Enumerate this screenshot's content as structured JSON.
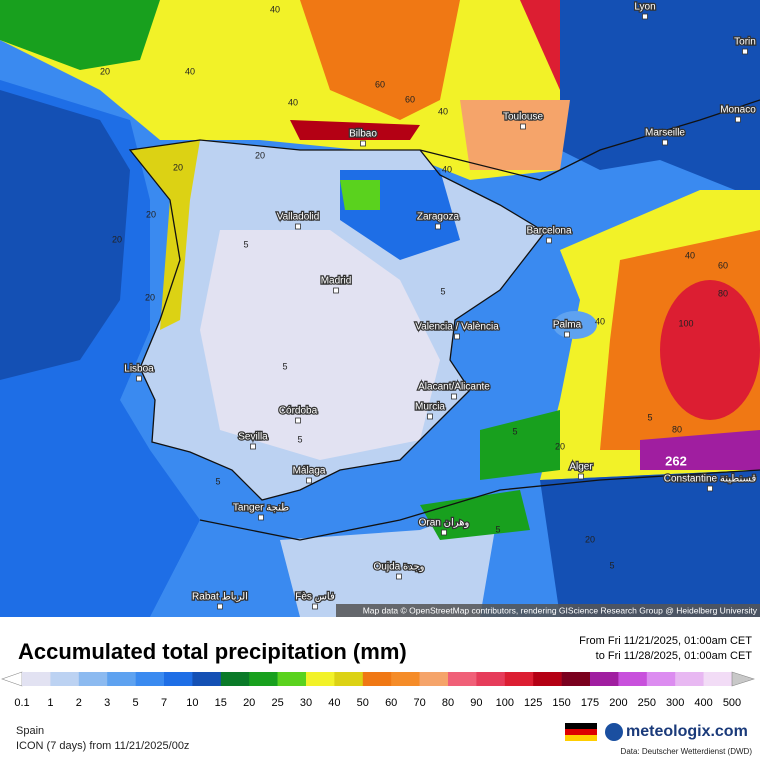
{
  "map": {
    "attribution": "Map data © OpenStreetMap contributors, rendering GIScience Research Group @ Heidelberg University",
    "cities": [
      "Lyon",
      "Torin",
      "Monaco",
      "Marseille",
      "Toulouse",
      "Bilbao",
      "Valladolid",
      "Zaragoza",
      "Barcelona",
      "Madrid",
      "Valencia / València",
      "Palma",
      "Lisboa",
      "Córdoba",
      "Alacant/Alicante",
      "Murcia",
      "Sevilla",
      "Málaga",
      "Alger",
      "Constantine قسنطينة",
      "Tanger طنجة",
      "Oran وهران",
      "Oujda وجدة",
      "Rabat الرباط",
      "Fès فاس"
    ],
    "max_label": "262",
    "contour_labels": [
      "40",
      "20",
      "40",
      "60",
      "40",
      "60",
      "40",
      "20",
      "40",
      "20",
      "20",
      "20",
      "20",
      "5",
      "5",
      "5",
      "5",
      "5",
      "5",
      "40",
      "60",
      "80",
      "100",
      "80",
      "20",
      "40",
      "20",
      "5",
      "5",
      "5"
    ]
  },
  "footer": {
    "title": "Accumulated total precipitation (mm)",
    "from": "From Fri 11/21/2025, 01:00am CET",
    "to": "to Fri 11/28/2025, 01:00am CET",
    "region": "Spain",
    "model": "ICON (7 days)  from  11/21/2025/00z",
    "brand": "meteologix.com",
    "source": "Data: Deutscher Wetterdienst (DWD)"
  },
  "legend": {
    "labels": [
      "0.1",
      "1",
      "2",
      "3",
      "5",
      "7",
      "10",
      "15",
      "20",
      "25",
      "30",
      "40",
      "50",
      "60",
      "70",
      "80",
      "90",
      "100",
      "125",
      "150",
      "175",
      "200",
      "250",
      "300",
      "400",
      "500"
    ],
    "under_color": "#ffffff",
    "colors": [
      "#e2e2f2",
      "#bcd2f2",
      "#8cbaf0",
      "#5ea2f0",
      "#3a8af0",
      "#1e6ee6",
      "#1450b4",
      "#0a7a28",
      "#18a01e",
      "#5ad21e",
      "#f2f228",
      "#dcd214",
      "#f07814",
      "#f58c28",
      "#f5a46a",
      "#f06078",
      "#e63c5a",
      "#dc1e32",
      "#b40014",
      "#7a001e",
      "#a01ea0",
      "#c850dc",
      "#dc8cf0",
      "#e8b8f2",
      "#f2dcf6"
    ],
    "over_color": "#c8c8c8"
  }
}
